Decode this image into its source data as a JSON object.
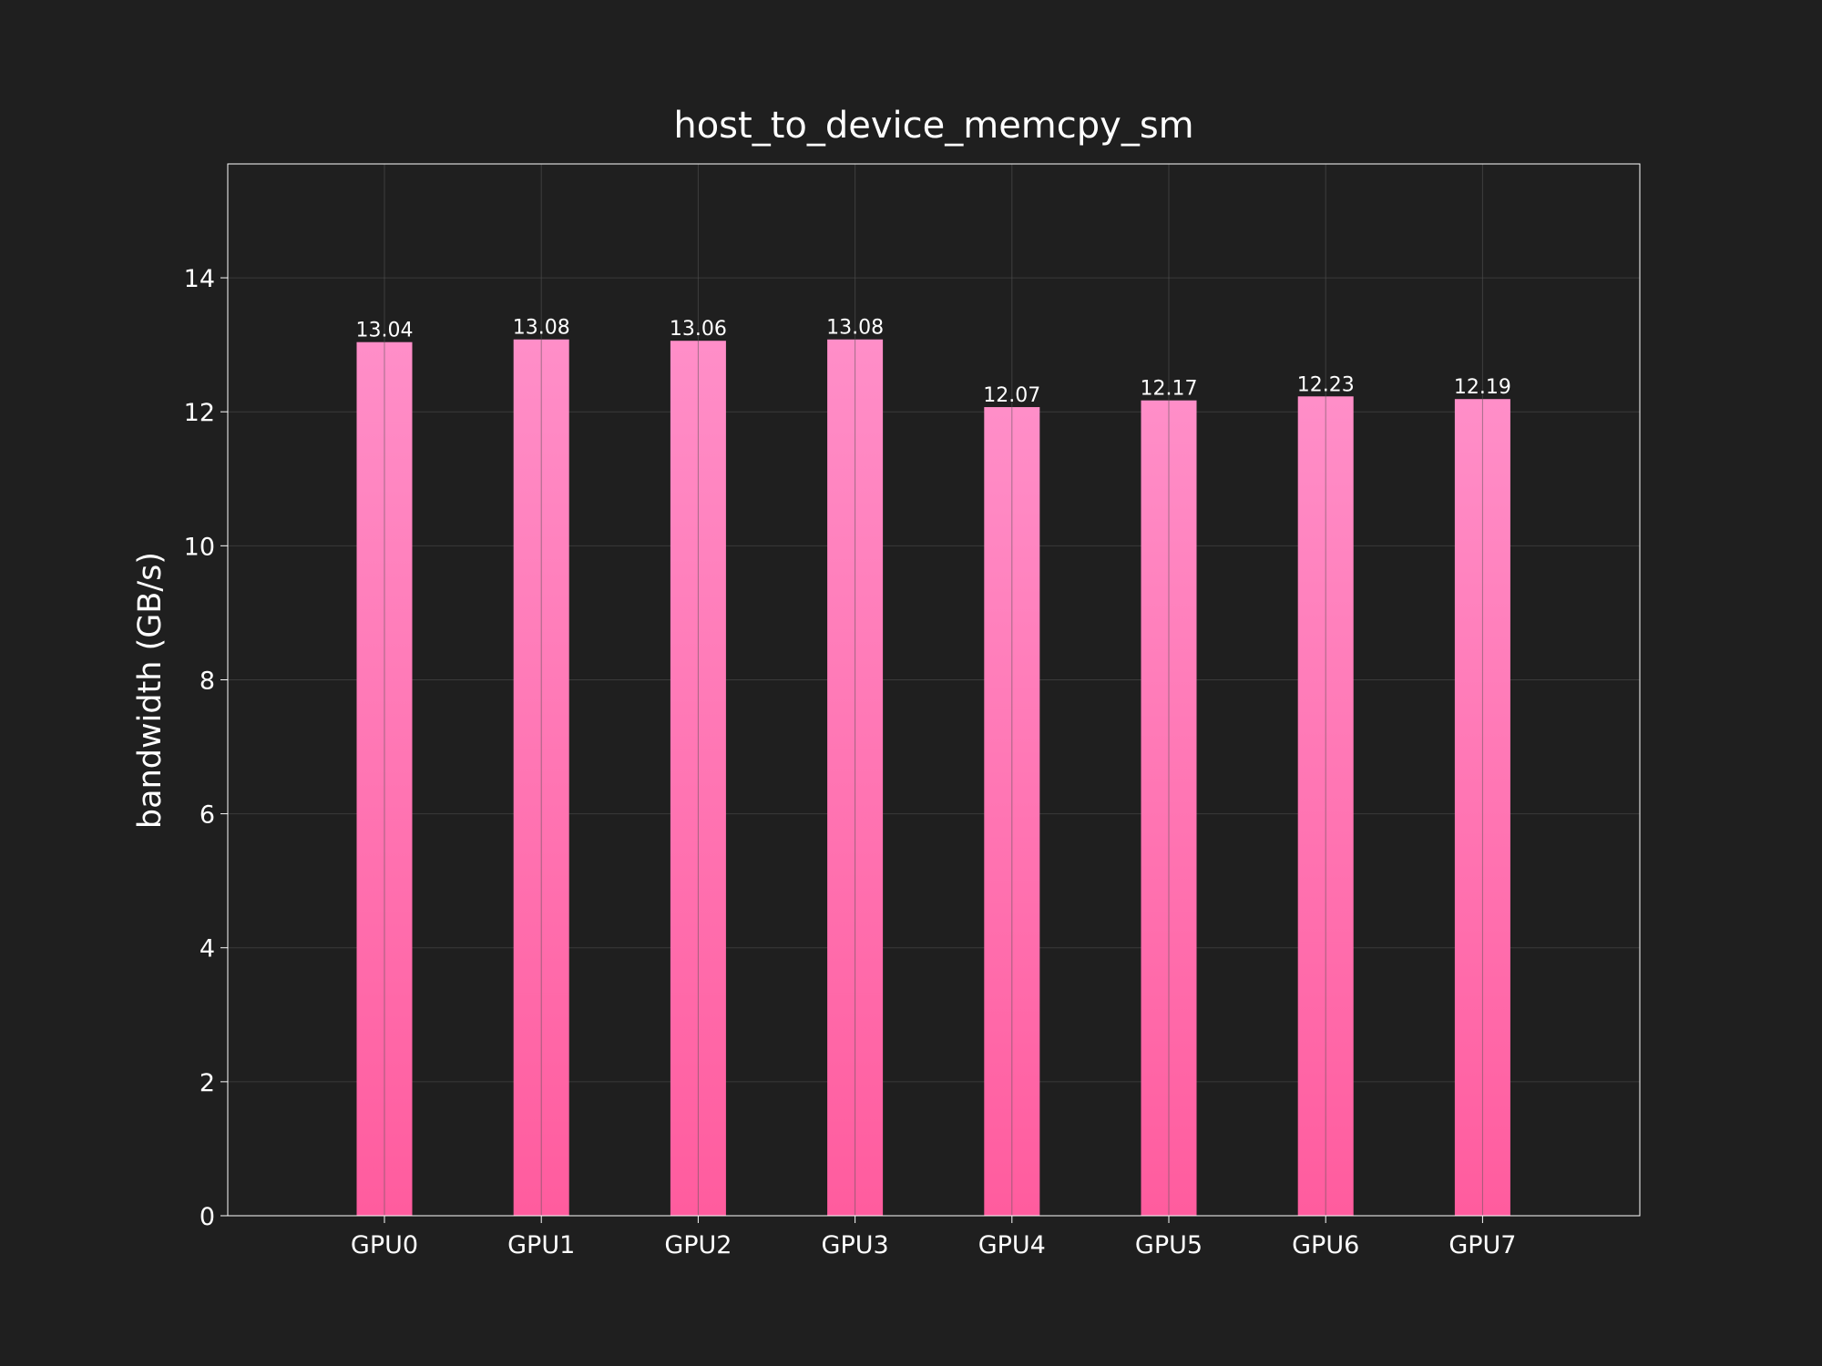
{
  "chart_data": {
    "type": "bar",
    "title": "host_to_device_memcpy_sm",
    "xlabel": "",
    "ylabel": "bandwidth (GB/s)",
    "categories": [
      "GPU0",
      "GPU1",
      "GPU2",
      "GPU3",
      "GPU4",
      "GPU5",
      "GPU6",
      "GPU7"
    ],
    "values": [
      13.04,
      13.08,
      13.06,
      13.08,
      12.07,
      12.17,
      12.23,
      12.19
    ],
    "value_labels": [
      "13.04",
      "13.08",
      "13.06",
      "13.08",
      "12.07",
      "12.17",
      "12.23",
      "12.19"
    ],
    "ylim": [
      0,
      15.7
    ],
    "yticks": [
      0,
      2,
      4,
      6,
      8,
      10,
      12,
      14
    ],
    "grid": true,
    "colors": {
      "background": "#1f1f1f",
      "text": "#ffffff",
      "bar_top": "#ff8ec8",
      "bar_bottom": "#ff5c9e",
      "grid": "#3a3a3a"
    }
  }
}
